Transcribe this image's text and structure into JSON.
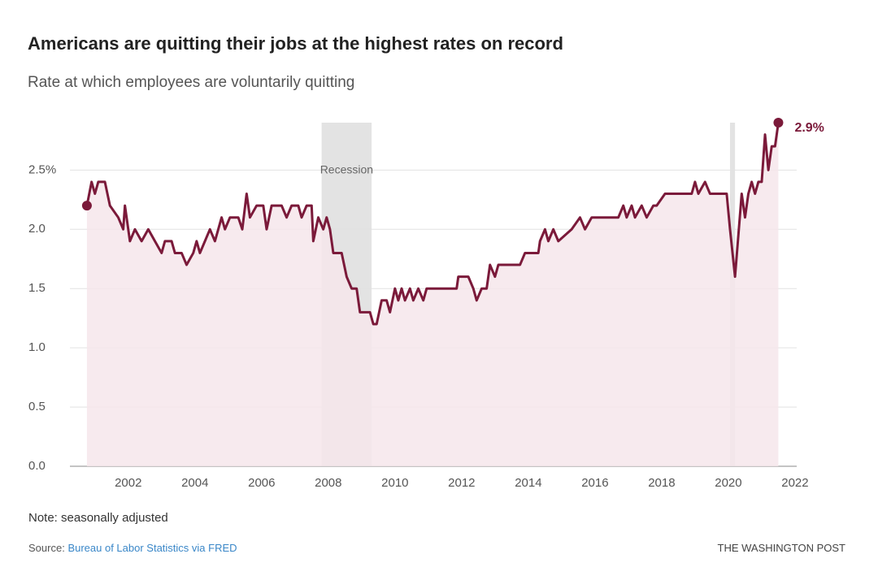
{
  "chart_data": {
    "type": "line",
    "title": "Americans are quitting their jobs at the highest rates on record",
    "subtitle": "Rate at which employees are voluntarily quitting",
    "x": [
      2000.76,
      2000.9,
      2001.0,
      2001.1,
      2001.3,
      2001.45,
      2001.7,
      2001.85,
      2001.9,
      2002.05,
      2002.2,
      2002.4,
      2002.6,
      2002.8,
      2003.0,
      2003.1,
      2003.3,
      2003.4,
      2003.6,
      2003.75,
      2003.95,
      2004.05,
      2004.15,
      2004.3,
      2004.45,
      2004.6,
      2004.8,
      2004.9,
      2005.05,
      2005.3,
      2005.42,
      2005.55,
      2005.65,
      2005.85,
      2006.05,
      2006.15,
      2006.3,
      2006.6,
      2006.75,
      2006.9,
      2007.1,
      2007.2,
      2007.35,
      2007.5,
      2007.55,
      2007.7,
      2007.85,
      2007.95,
      2008.05,
      2008.15,
      2008.4,
      2008.55,
      2008.7,
      2008.85,
      2008.95,
      2009.25,
      2009.35,
      2009.45,
      2009.6,
      2009.75,
      2009.85,
      2010.0,
      2010.1,
      2010.2,
      2010.3,
      2010.45,
      2010.55,
      2010.7,
      2010.85,
      2010.95,
      2011.3,
      2011.45,
      2011.85,
      2011.9,
      2012.2,
      2012.35,
      2012.45,
      2012.6,
      2012.75,
      2012.85,
      2013.0,
      2013.1,
      2013.75,
      2013.9,
      2014.3,
      2014.35,
      2014.5,
      2014.6,
      2014.75,
      2014.9,
      2015.3,
      2015.55,
      2015.7,
      2015.9,
      2016.7,
      2016.85,
      2016.95,
      2017.1,
      2017.2,
      2017.4,
      2017.55,
      2017.75,
      2017.85,
      2018.1,
      2018.9,
      2019.0,
      2019.1,
      2019.3,
      2019.45,
      2019.95,
      2020.05,
      2020.2,
      2020.4,
      2020.5,
      2020.6,
      2020.7,
      2020.8,
      2020.9,
      2021.0,
      2021.1,
      2021.2,
      2021.3,
      2021.4,
      2021.5
    ],
    "values": [
      2.2,
      2.4,
      2.3,
      2.4,
      2.4,
      2.2,
      2.1,
      2.0,
      2.2,
      1.9,
      2.0,
      1.9,
      2.0,
      1.9,
      1.8,
      1.9,
      1.9,
      1.8,
      1.8,
      1.7,
      1.8,
      1.9,
      1.8,
      1.9,
      2.0,
      1.9,
      2.1,
      2.0,
      2.1,
      2.1,
      2.0,
      2.3,
      2.1,
      2.2,
      2.2,
      2.0,
      2.2,
      2.2,
      2.1,
      2.2,
      2.2,
      2.1,
      2.2,
      2.2,
      1.9,
      2.1,
      2.0,
      2.1,
      2.0,
      1.8,
      1.8,
      1.6,
      1.5,
      1.5,
      1.3,
      1.3,
      1.2,
      1.2,
      1.4,
      1.4,
      1.3,
      1.5,
      1.4,
      1.5,
      1.4,
      1.5,
      1.4,
      1.5,
      1.4,
      1.5,
      1.5,
      1.5,
      1.5,
      1.6,
      1.6,
      1.5,
      1.4,
      1.5,
      1.5,
      1.7,
      1.6,
      1.7,
      1.7,
      1.8,
      1.8,
      1.9,
      2.0,
      1.9,
      2.0,
      1.9,
      2.0,
      2.1,
      2.0,
      2.1,
      2.1,
      2.2,
      2.1,
      2.2,
      2.1,
      2.2,
      2.1,
      2.2,
      2.2,
      2.3,
      2.3,
      2.4,
      2.3,
      2.4,
      2.3,
      2.3,
      2.0,
      1.6,
      2.3,
      2.1,
      2.3,
      2.4,
      2.3,
      2.4,
      2.4,
      2.8,
      2.5,
      2.7,
      2.7,
      2.9
    ],
    "color": "#7b1a3a",
    "area_color": "#f6e6eb",
    "end_label": "2.9%",
    "xlim": [
      2000.25,
      2022.05
    ],
    "xticks": [
      2002,
      2004,
      2006,
      2008,
      2010,
      2012,
      2014,
      2016,
      2018,
      2020,
      2022
    ],
    "ylim": [
      0,
      2.9
    ],
    "yticks": [
      {
        "value": 0,
        "label": "0.0"
      },
      0.5,
      {
        "value": 1,
        "label": "1.0"
      },
      1.5,
      {
        "value": 2,
        "label": "2.0"
      },
      {
        "value": 2.5,
        "label": "2.5%"
      }
    ],
    "grid": true,
    "shading_label": "Recession",
    "shading": [
      {
        "start": 2007.8,
        "end": 2009.3
      },
      {
        "start": 2020.05,
        "end": 2020.2
      }
    ],
    "note": "Note: seasonally adjusted",
    "source_label": "Source:",
    "source": "Bureau of Labor Statistics via FRED",
    "credit": "THE WASHINGTON POST"
  }
}
